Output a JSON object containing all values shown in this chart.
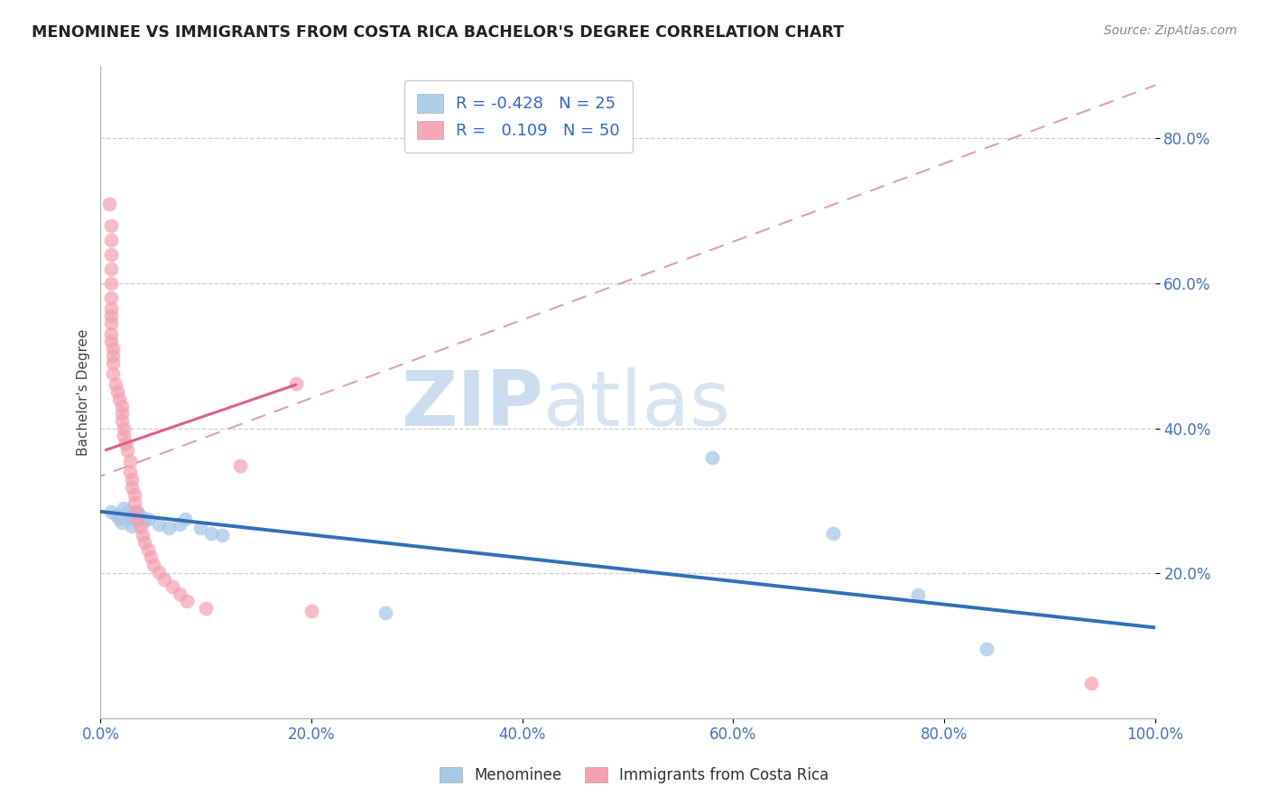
{
  "title": "MENOMINEE VS IMMIGRANTS FROM COSTA RICA BACHELOR'S DEGREE CORRELATION CHART",
  "source": "Source: ZipAtlas.com",
  "ylabel": "Bachelor's Degree",
  "xlim": [
    0,
    1.0
  ],
  "ylim": [
    0.0,
    0.9
  ],
  "xtick_labels": [
    "0.0%",
    "20.0%",
    "40.0%",
    "60.0%",
    "80.0%",
    "100.0%"
  ],
  "xtick_vals": [
    0.0,
    0.2,
    0.4,
    0.6,
    0.8,
    1.0
  ],
  "ytick_labels": [
    "20.0%",
    "40.0%",
    "60.0%",
    "80.0%"
  ],
  "ytick_vals": [
    0.2,
    0.4,
    0.6,
    0.8
  ],
  "legend_R_blue": "-0.428",
  "legend_N_blue": "25",
  "legend_R_pink": "0.109",
  "legend_N_pink": "50",
  "blue_scatter_color": "#a8c8e8",
  "pink_scatter_color": "#f4a0b0",
  "blue_line_color": "#3070b8",
  "pink_solid_color": "#e06080",
  "pink_dash_color": "#e0a0b0",
  "menominee_points": [
    [
      0.01,
      0.285
    ],
    [
      0.015,
      0.28
    ],
    [
      0.018,
      0.275
    ],
    [
      0.02,
      0.27
    ],
    [
      0.022,
      0.29
    ],
    [
      0.025,
      0.285
    ],
    [
      0.028,
      0.28
    ],
    [
      0.03,
      0.275
    ],
    [
      0.03,
      0.265
    ],
    [
      0.035,
      0.285
    ],
    [
      0.038,
      0.278
    ],
    [
      0.042,
      0.272
    ],
    [
      0.045,
      0.275
    ],
    [
      0.055,
      0.268
    ],
    [
      0.065,
      0.263
    ],
    [
      0.075,
      0.268
    ],
    [
      0.08,
      0.275
    ],
    [
      0.095,
      0.262
    ],
    [
      0.105,
      0.255
    ],
    [
      0.115,
      0.252
    ],
    [
      0.27,
      0.145
    ],
    [
      0.58,
      0.36
    ],
    [
      0.695,
      0.255
    ],
    [
      0.775,
      0.17
    ],
    [
      0.84,
      0.095
    ]
  ],
  "costarica_points": [
    [
      0.008,
      0.71
    ],
    [
      0.01,
      0.68
    ],
    [
      0.01,
      0.66
    ],
    [
      0.01,
      0.64
    ],
    [
      0.01,
      0.62
    ],
    [
      0.01,
      0.6
    ],
    [
      0.01,
      0.58
    ],
    [
      0.01,
      0.565
    ],
    [
      0.01,
      0.555
    ],
    [
      0.01,
      0.545
    ],
    [
      0.01,
      0.53
    ],
    [
      0.01,
      0.52
    ],
    [
      0.012,
      0.51
    ],
    [
      0.012,
      0.5
    ],
    [
      0.012,
      0.49
    ],
    [
      0.012,
      0.475
    ],
    [
      0.014,
      0.46
    ],
    [
      0.016,
      0.45
    ],
    [
      0.018,
      0.44
    ],
    [
      0.02,
      0.43
    ],
    [
      0.02,
      0.42
    ],
    [
      0.02,
      0.41
    ],
    [
      0.022,
      0.4
    ],
    [
      0.022,
      0.39
    ],
    [
      0.024,
      0.38
    ],
    [
      0.025,
      0.37
    ],
    [
      0.028,
      0.355
    ],
    [
      0.028,
      0.34
    ],
    [
      0.03,
      0.33
    ],
    [
      0.03,
      0.318
    ],
    [
      0.032,
      0.308
    ],
    [
      0.032,
      0.297
    ],
    [
      0.034,
      0.285
    ],
    [
      0.035,
      0.274
    ],
    [
      0.038,
      0.264
    ],
    [
      0.04,
      0.253
    ],
    [
      0.042,
      0.243
    ],
    [
      0.045,
      0.232
    ],
    [
      0.048,
      0.222
    ],
    [
      0.05,
      0.212
    ],
    [
      0.055,
      0.202
    ],
    [
      0.06,
      0.192
    ],
    [
      0.068,
      0.182
    ],
    [
      0.075,
      0.172
    ],
    [
      0.082,
      0.162
    ],
    [
      0.1,
      0.152
    ],
    [
      0.132,
      0.348
    ],
    [
      0.185,
      0.462
    ],
    [
      0.2,
      0.148
    ],
    [
      0.94,
      0.048
    ]
  ],
  "pink_solid_line": [
    [
      0.005,
      0.37
    ],
    [
      0.185,
      0.46
    ]
  ],
  "pink_dash_line": [
    [
      -0.1,
      0.28
    ],
    [
      1.05,
      0.9
    ]
  ]
}
